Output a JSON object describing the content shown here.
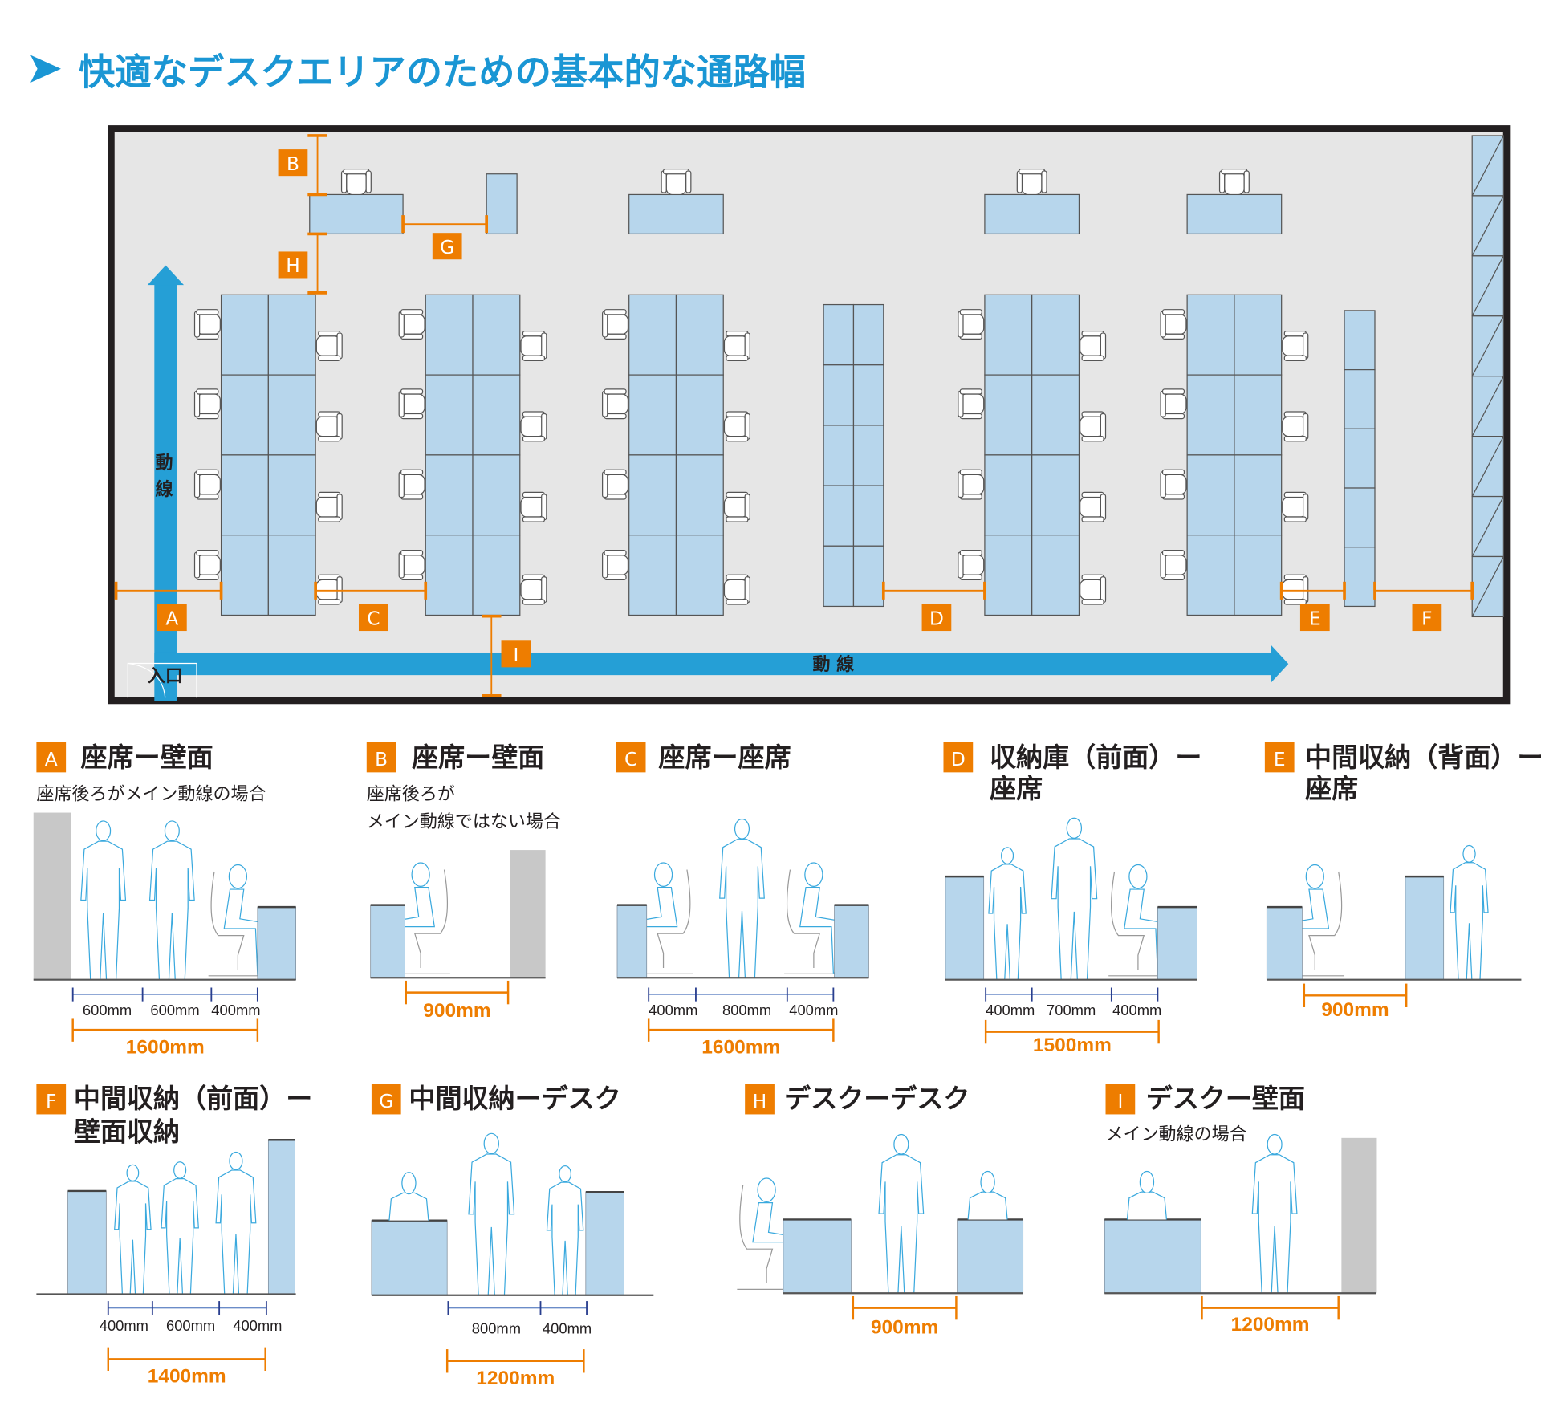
{
  "title": "快適なデスクエリアのための基本的な通路幅",
  "colors": {
    "title": "#1a96d4",
    "accent_orange": "#ee7d00",
    "furniture_blue": "#b7d6ec",
    "flow_arrow": "#259fd6",
    "wall_gray": "#c8c8c8",
    "floor": "#e6e6e6"
  },
  "plan": {
    "flow_vertical": [
      "動",
      "線"
    ],
    "flow_horizontal": "動 線",
    "entrance": "入口",
    "markers": [
      "A",
      "B",
      "C",
      "D",
      "E",
      "F",
      "G",
      "H",
      "I"
    ]
  },
  "sections": [
    {
      "letter": "A",
      "title": [
        "座席ー壁面"
      ],
      "subtitle": [
        "座席後ろがメイン動線の場合"
      ],
      "dims": [
        "600mm",
        "600mm",
        "400mm"
      ],
      "total": "1600mm"
    },
    {
      "letter": "B",
      "title": [
        "座席ー壁面"
      ],
      "subtitle": [
        "座席後ろが",
        "メイン動線ではない場合"
      ],
      "dims": [],
      "total": "900mm"
    },
    {
      "letter": "C",
      "title": [
        "座席ー座席"
      ],
      "subtitle": [],
      "dims": [
        "400mm",
        "800mm",
        "400mm"
      ],
      "total": "1600mm"
    },
    {
      "letter": "D",
      "title": [
        "収納庫（前面）ー",
        "座席"
      ],
      "subtitle": [],
      "dims": [
        "400mm",
        "700mm",
        "400mm"
      ],
      "total": "1500mm"
    },
    {
      "letter": "E",
      "title": [
        "中間収納（背面）ー",
        "座席"
      ],
      "subtitle": [],
      "dims": [],
      "total": "900mm"
    },
    {
      "letter": "F",
      "title": [
        "中間収納（前面）ー",
        "壁面収納"
      ],
      "subtitle": [],
      "dims": [
        "400mm",
        "600mm",
        "400mm"
      ],
      "total": "1400mm"
    },
    {
      "letter": "G",
      "title": [
        "中間収納ーデスク"
      ],
      "subtitle": [],
      "dims": [
        "800mm",
        "400mm"
      ],
      "total": "1200mm"
    },
    {
      "letter": "H",
      "title": [
        "デスクーデスク"
      ],
      "subtitle": [],
      "dims": [],
      "total": "900mm"
    },
    {
      "letter": "I",
      "title": [
        "デスクー壁面"
      ],
      "subtitle": [
        "メイン動線の場合"
      ],
      "dims": [],
      "total": "1200mm"
    }
  ]
}
